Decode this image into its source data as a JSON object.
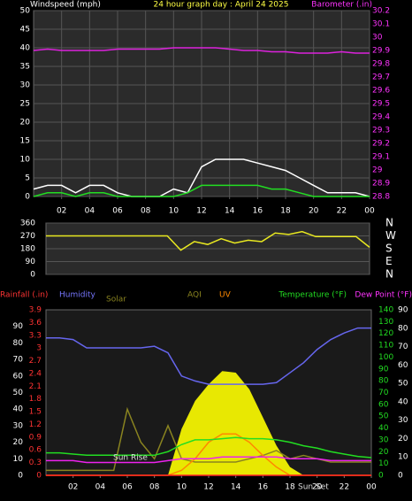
{
  "chart_data": [
    {
      "type": "line",
      "title": "24 hour graph day : April 24 2025",
      "ylabel": "Windspeed (mph)",
      "y2label": "Barometer (.in)",
      "x": [
        0,
        1,
        2,
        3,
        4,
        5,
        6,
        7,
        8,
        9,
        10,
        11,
        12,
        13,
        14,
        15,
        16,
        17,
        18,
        19,
        20,
        21,
        22,
        23,
        24
      ],
      "xlim": [
        0,
        24
      ],
      "xticks": [
        {
          "value": 2,
          "label": "02"
        },
        {
          "value": 4,
          "label": "04"
        },
        {
          "value": 6,
          "label": "06"
        },
        {
          "value": 8,
          "label": "08"
        },
        10,
        12,
        14,
        16,
        18,
        20,
        22,
        {
          "value": 24,
          "label": "00"
        }
      ],
      "ylim": [
        0,
        50
      ],
      "yticks": [
        0,
        5,
        10,
        15,
        20,
        25,
        30,
        35,
        40,
        45,
        50
      ],
      "y2lim": [
        28.8,
        30.2
      ],
      "y2ticks": [
        28.8,
        28.9,
        29,
        29.1,
        29.2,
        29.3,
        29.4,
        29.5,
        29.6,
        29.7,
        29.8,
        29.9,
        30,
        30.1,
        30.2
      ],
      "grid": true,
      "series": [
        {
          "color": "#ffffff",
          "values": [
            2,
            3,
            3,
            1,
            3,
            3,
            1,
            0,
            0,
            0,
            2,
            1,
            8,
            10,
            10,
            10,
            9,
            8,
            7,
            5,
            3,
            1,
            1,
            1,
            0
          ]
        },
        {
          "color": "#22dd22",
          "values": [
            0,
            1,
            1,
            0,
            1,
            1,
            0,
            0,
            0,
            0,
            0,
            1,
            3,
            3,
            3,
            3,
            3,
            2,
            2,
            1,
            0,
            0,
            0,
            0,
            0
          ]
        },
        {
          "color": "#dd22dd",
          "axis": "y2",
          "values": [
            29.9,
            29.91,
            29.9,
            29.9,
            29.9,
            29.9,
            29.91,
            29.91,
            29.91,
            29.91,
            29.92,
            29.92,
            29.92,
            29.92,
            29.91,
            29.9,
            29.9,
            29.89,
            29.89,
            29.88,
            29.88,
            29.88,
            29.89,
            29.88,
            29.88
          ]
        }
      ]
    },
    {
      "type": "line",
      "x": [
        0,
        1,
        2,
        3,
        4,
        5,
        6,
        7,
        8,
        9,
        10,
        11,
        12,
        13,
        14,
        15,
        16,
        17,
        18,
        19,
        20,
        21,
        22,
        23,
        24
      ],
      "xlim": [
        0,
        24
      ],
      "ylim": [
        0,
        360
      ],
      "yticks": [
        0,
        90,
        180,
        270,
        360
      ],
      "y2lim": [
        0,
        360
      ],
      "y2ticks": [
        {
          "value": 360,
          "label": "N"
        },
        {
          "value": 270,
          "label": "W"
        },
        {
          "value": 180,
          "label": "S"
        },
        {
          "value": 90,
          "label": "E"
        },
        {
          "value": 0,
          "label": "N"
        }
      ],
      "grid": true,
      "series": [
        {
          "color": "#e8e820",
          "values": [
            270,
            270,
            270,
            270,
            270,
            270,
            270,
            270,
            270,
            270,
            170,
            230,
            210,
            250,
            220,
            240,
            230,
            290,
            280,
            300,
            265,
            265,
            265,
            265,
            190
          ]
        }
      ]
    },
    {
      "type": "line",
      "ylabel": "Humidity",
      "y2label": "Temperature (°F)",
      "y3label": "Rainfall (.in)",
      "y4label": "Dew Point (°F)",
      "annotations": [
        "Sun Rise",
        "Sun Set"
      ],
      "x": [
        0,
        1,
        2,
        3,
        4,
        5,
        6,
        7,
        8,
        9,
        10,
        11,
        12,
        13,
        14,
        15,
        16,
        17,
        18,
        19,
        20,
        21,
        22,
        23,
        24
      ],
      "xlim": [
        0,
        24
      ],
      "xticks": [
        {
          "value": 2,
          "label": "02"
        },
        {
          "value": 4,
          "label": "04"
        },
        {
          "value": 6,
          "label": "06"
        },
        {
          "value": 8,
          "label": "08"
        },
        10,
        12,
        14,
        16,
        18,
        20,
        22,
        {
          "value": 24,
          "label": "00"
        }
      ],
      "ylim": [
        0,
        100
      ],
      "yticks": [
        0,
        10,
        20,
        30,
        40,
        50,
        60,
        70,
        80,
        90
      ],
      "y2lim": [
        0,
        140
      ],
      "y2ticks": [
        0,
        10,
        20,
        30,
        40,
        50,
        60,
        70,
        80,
        90,
        100,
        110,
        120,
        130,
        140
      ],
      "y3lim": [
        0,
        3.9
      ],
      "y3ticks": [
        0,
        0.3,
        0.6,
        0.9,
        1.2,
        1.5,
        1.8,
        2.1,
        2.4,
        2.7,
        3,
        3.3,
        3.6,
        3.9
      ],
      "y4lim": [
        0,
        90
      ],
      "y4ticks": [
        0,
        10,
        20,
        30,
        40,
        50,
        60,
        70,
        80,
        90
      ],
      "series": [
        {
          "name": "Solar",
          "color": "#ffff00",
          "style": "area",
          "values": [
            0,
            0,
            0,
            0,
            0,
            0,
            0,
            0,
            0,
            0,
            28,
            45,
            55,
            63,
            62,
            52,
            35,
            18,
            5,
            0,
            0,
            0,
            0,
            0,
            0
          ]
        },
        {
          "name": "AQI",
          "color": "#8a8420",
          "values": [
            3,
            3,
            3,
            3,
            3,
            3,
            40,
            20,
            10,
            30,
            10,
            8,
            8,
            8,
            8,
            10,
            12,
            15,
            10,
            12,
            10,
            8,
            8,
            8,
            8
          ]
        },
        {
          "name": "UV",
          "color": "#ff8800",
          "values": [
            0,
            0,
            0,
            0,
            0,
            0,
            0,
            0,
            0,
            0,
            3,
            10,
            20,
            25,
            25,
            20,
            12,
            5,
            0,
            0,
            0,
            0,
            0,
            0,
            0
          ]
        },
        {
          "color": "#6666ee",
          "values": [
            83,
            83,
            82,
            77,
            77,
            77,
            77,
            77,
            78,
            74,
            60,
            57,
            55,
            55,
            55,
            55,
            55,
            56,
            62,
            68,
            76,
            82,
            86,
            89,
            89
          ]
        },
        {
          "color": "#22dd22",
          "axis": "y2",
          "values": [
            19,
            19,
            18,
            17,
            17,
            17,
            17,
            17,
            17,
            20,
            26,
            30,
            30,
            31,
            32,
            31,
            31,
            30,
            28,
            25,
            23,
            20,
            18,
            16,
            15
          ]
        },
        {
          "color": "#ee22ee",
          "axis": "y4",
          "values": [
            8,
            8,
            8,
            7,
            7,
            7,
            7,
            7,
            7,
            8,
            9,
            9,
            9,
            10,
            10,
            10,
            10,
            10,
            9,
            9,
            9,
            8,
            8,
            8,
            8
          ]
        },
        {
          "color": "#ff2222",
          "axis": "y3",
          "values": [
            0,
            0,
            0,
            0,
            0,
            0,
            0,
            0,
            0,
            0,
            0,
            0,
            0,
            0,
            0,
            0,
            0,
            0,
            0,
            0,
            0,
            0,
            0,
            0,
            0
          ]
        }
      ]
    }
  ]
}
